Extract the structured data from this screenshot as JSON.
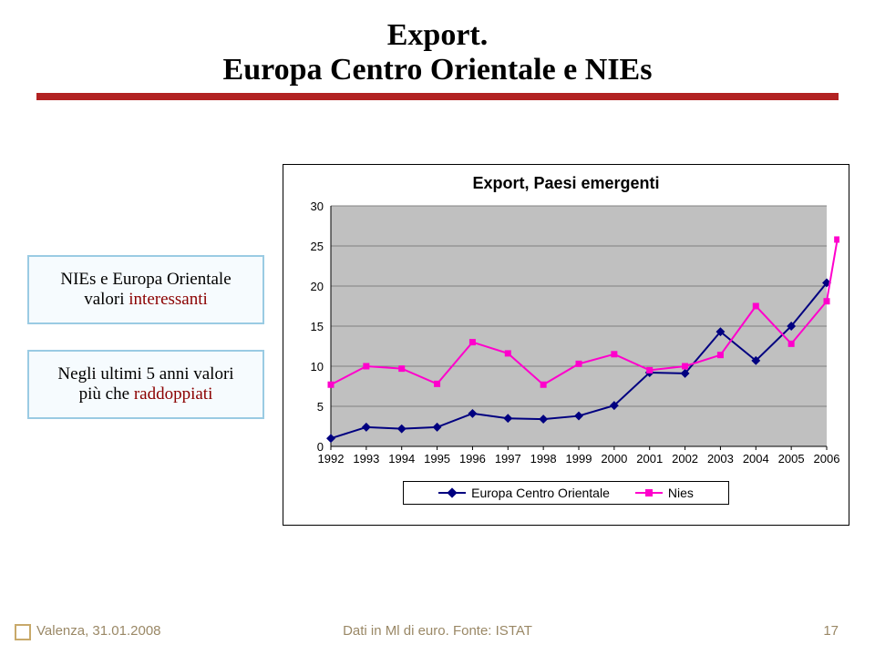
{
  "title": {
    "line1": "Export.",
    "line2": "Europa Centro Orientale e NIEs"
  },
  "box1": {
    "l1": "NIEs e Europa Orientale",
    "l2_plain": "valori ",
    "l2_accent": "interessanti"
  },
  "box2": {
    "l1_plain": "Negli ultimi 5 anni valori",
    "l2_plain": "più che ",
    "l2_accent": "raddoppiati"
  },
  "chart": {
    "title": "Export, Paesi emergenti",
    "type": "line",
    "ylim": [
      0,
      30
    ],
    "ytick_step": 5,
    "yticks": [
      0,
      5,
      10,
      15,
      20,
      25,
      30
    ],
    "categories": [
      "1992",
      "1993",
      "1994",
      "1995",
      "1996",
      "1997",
      "1998",
      "1999",
      "2000",
      "2001",
      "2002",
      "2003",
      "2004",
      "2005",
      "2006"
    ],
    "series": [
      {
        "name": "Europa Centro Orientale",
        "color": "#000080",
        "marker": "diamond",
        "marker_size": 7,
        "line_width": 2,
        "values": [
          1.0,
          2.4,
          2.2,
          2.4,
          4.1,
          3.5,
          3.4,
          3.8,
          5.1,
          9.2,
          9.1,
          14.3,
          10.7,
          15.0,
          20.4
        ]
      },
      {
        "name": "Nies",
        "color": "#ff00cc",
        "marker": "square",
        "marker_size": 7,
        "line_width": 2,
        "values": [
          7.7,
          10.0,
          9.7,
          7.8,
          13.0,
          11.6,
          7.7,
          10.3,
          11.5,
          9.5,
          10.0,
          11.4,
          17.5,
          12.8,
          18.1,
          25.8
        ]
      }
    ],
    "extra_nies_last_x_offset": 0.3,
    "plot_bg": "#c0c0c0",
    "grid_color": "#808080",
    "axis_color": "#000000",
    "tick_label_fontsize": 13,
    "tick_label_color": "#000000",
    "title_fontsize": 18,
    "line_tension": 0,
    "legend": {
      "items": [
        "Europa Centro Orientale",
        "Nies"
      ],
      "colors": [
        "#000080",
        "#ff00cc"
      ],
      "markers": [
        "diamond",
        "square"
      ]
    }
  },
  "footer": {
    "left": "Valenza, 31.01.2008",
    "center": "Dati in Ml di euro. Fonte: ISTAT",
    "pagenum": "17"
  },
  "colors": {
    "rule": "#b22222",
    "box_border": "#9acbe3",
    "box_bg": "#f6fbfe",
    "footer_text": "#9a8866",
    "footer_square_border": "#c8a96a"
  }
}
